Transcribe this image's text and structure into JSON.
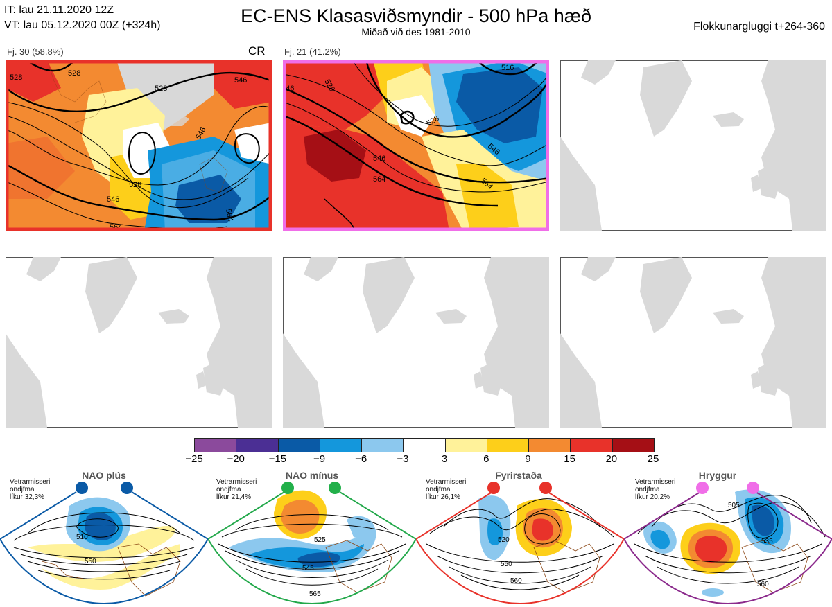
{
  "header": {
    "it_line": "IT: lau 21.11.2020 12Z",
    "vt_line": "VT: lau 05.12.2020 00Z  (+324h)",
    "title": "EC-ENS Klasasviðsmyndir - 500 hPa hæð",
    "subtitle": "Miðað við des 1981-2010",
    "window": "Flokkunargluggi t+264-360"
  },
  "clusters": [
    {
      "label": "Fj. 30 (58.8%)",
      "tag": "CR",
      "frame_color": "#e8322a"
    },
    {
      "label": "Fj. 21 (41.2%)",
      "tag": "",
      "frame_color": "#f06ee8"
    }
  ],
  "contour_labels_1": [
    "528",
    "528",
    "546",
    "546",
    "528",
    "546",
    "564",
    "564",
    "528"
  ],
  "contour_labels_2": [
    "546",
    "528",
    "528",
    "546",
    "564",
    "564",
    "546",
    "516"
  ],
  "colorbar": {
    "ticks": [
      "−25",
      "−20",
      "−15",
      "−9",
      "−6",
      "−3",
      "3",
      "6",
      "9",
      "15",
      "20",
      "25"
    ],
    "colors": [
      "#8b4a9c",
      "#4b2f94",
      "#0a5aa6",
      "#1497dc",
      "#8cc8ee",
      "#ffffff",
      "#fff29a",
      "#fdcf1a",
      "#f38a31",
      "#e8322a",
      "#a50f15"
    ]
  },
  "regimes": [
    {
      "name": "NAO plús",
      "note1": "Vetrarmisseri",
      "note2": "ondjfma",
      "note3": "líkur 32,3%",
      "labels": [
        "510",
        "550"
      ],
      "frame": "#0a5aa6",
      "dot": "#0a5aa6"
    },
    {
      "name": "NAO mínus",
      "note1": "Vetrarmisseri",
      "note2": "ondjfma",
      "note3": "líkur 21,4%",
      "labels": [
        "525",
        "545",
        "565"
      ],
      "frame": "#22a84a",
      "dot": "#22b04a"
    },
    {
      "name": "Fyrirstaða",
      "note1": "Vetrarmisseri",
      "note2": "ondjfma",
      "note3": "líkur 26,1%",
      "labels": [
        "520",
        "550",
        "560"
      ],
      "frame": "#e8322a",
      "dot": "#e8322a"
    },
    {
      "name": "Hryggur",
      "note1": "Vetrarmisseri",
      "note2": "ondjfma",
      "note3": "líkur 20,2%",
      "labels": [
        "505",
        "535",
        "560"
      ],
      "frame": "#8b2a8c",
      "dot": "#f06ee8"
    }
  ]
}
